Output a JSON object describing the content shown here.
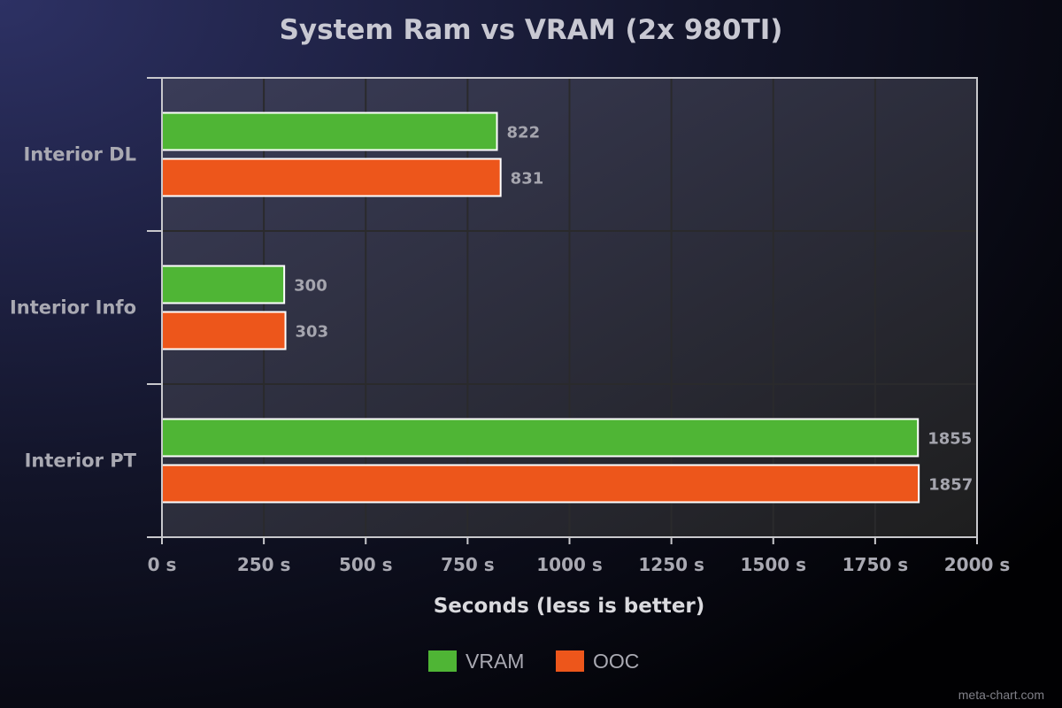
{
  "chart_data": {
    "type": "bar",
    "orientation": "horizontal",
    "title": "System Ram vs VRAM (2x 980TI)",
    "xlabel": "Seconds (less is better)",
    "ylabel": "",
    "categories": [
      "Interior DL",
      "Interior Info",
      "Interior PT"
    ],
    "series": [
      {
        "name": "VRAM",
        "color": "#4fb535",
        "values": [
          822,
          300,
          1855
        ]
      },
      {
        "name": "OOC",
        "color": "#ed561b",
        "values": [
          831,
          303,
          1857
        ]
      }
    ],
    "xlim": [
      0,
      2000
    ],
    "xticks": [
      0,
      250,
      500,
      750,
      1000,
      1250,
      1500,
      1750,
      2000
    ],
    "tick_suffix": " s",
    "grid": true,
    "legend_position": "bottom-center"
  },
  "watermark": "meta-chart.com"
}
